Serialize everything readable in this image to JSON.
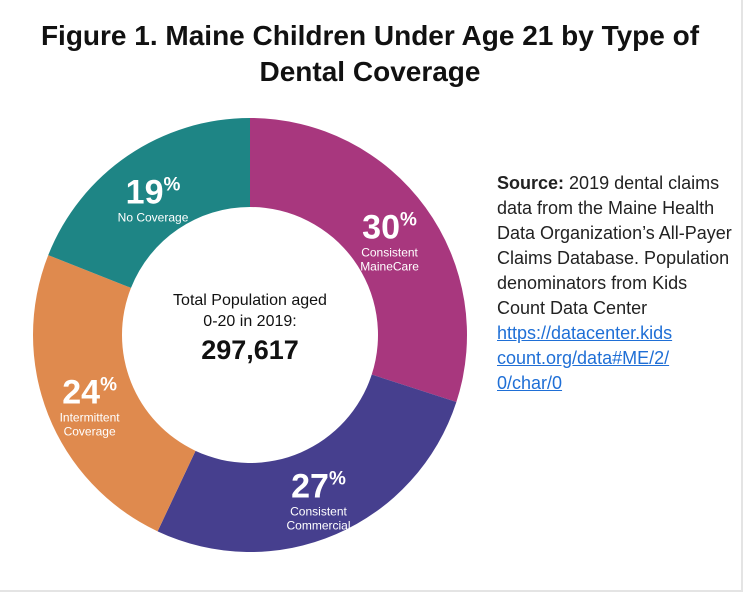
{
  "chart_data": {
    "type": "donut",
    "title": "Figure 1. Maine Children Under Age 21 by Type of Dental Coverage",
    "series": [
      {
        "name": "Consistent MaineCare",
        "color": "#a8377e",
        "value": 30,
        "value_label": "30%"
      },
      {
        "name": "Consistent Commercial",
        "color": "#463f8e",
        "value": 27,
        "value_label": "27%"
      },
      {
        "name": "Intermittent Coverage",
        "color": "#df8a4e",
        "value": 24,
        "value_label": "24%"
      },
      {
        "name": "No Coverage",
        "color": "#1e8585",
        "value": 19,
        "value_label": "19%"
      }
    ],
    "center_label": "Total Population aged 0-20 in 2019:",
    "center_value": "297,617",
    "source": {
      "label": "Source:",
      "text": "2019 dental claims data from the Maine Health Data Organization’s All-Payer Claims Database.  Population denominators from Kids Count Data Center",
      "url": "https://datacenter.kidscount.org/data#ME/2/0/char/0"
    }
  }
}
